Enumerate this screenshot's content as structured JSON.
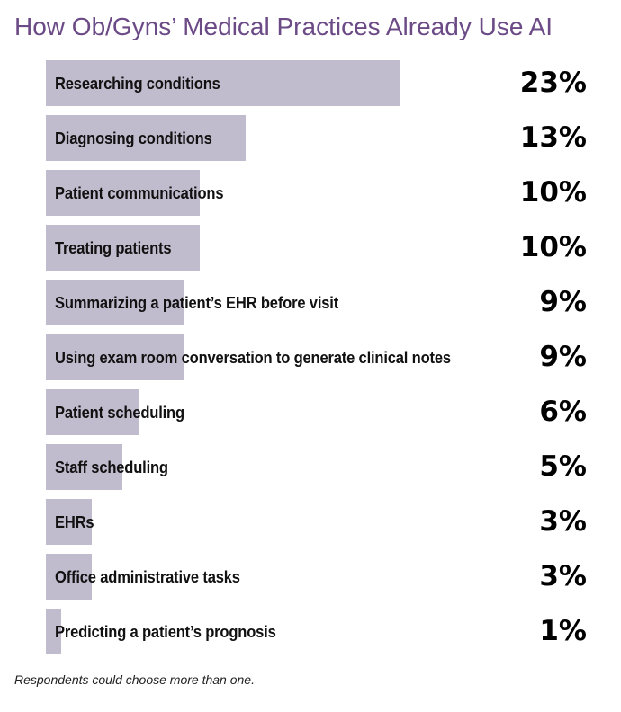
{
  "title": "How Ob/Gyns’ Medical Practices Already Use AI",
  "note": "Respondents could choose more than one.",
  "colors": {
    "title": "#6b4a86",
    "bar": "#c1bccd",
    "text": "#111111"
  },
  "chart_data": {
    "type": "bar",
    "orientation": "horizontal",
    "title": "How Ob/Gyns’ Medical Practices Already Use AI",
    "categories": [
      "Researching conditions",
      "Diagnosing conditions",
      "Patient communications",
      "Treating patients",
      "Summarizing a patient’s EHR before visit",
      "Using exam room conversation to generate clinical notes",
      "Patient scheduling",
      "Staff scheduling",
      "EHRs",
      "Office administrative tasks",
      "Predicting a patient’s prognosis"
    ],
    "values": [
      23,
      13,
      10,
      10,
      9,
      9,
      6,
      5,
      3,
      3,
      1
    ],
    "value_labels": [
      "23%",
      "13%",
      "10%",
      "10%",
      "9%",
      "9%",
      "6%",
      "5%",
      "3%",
      "3%",
      "1%"
    ],
    "unit": "%",
    "xlim": [
      0,
      23
    ],
    "grid": false,
    "legend": "none"
  }
}
